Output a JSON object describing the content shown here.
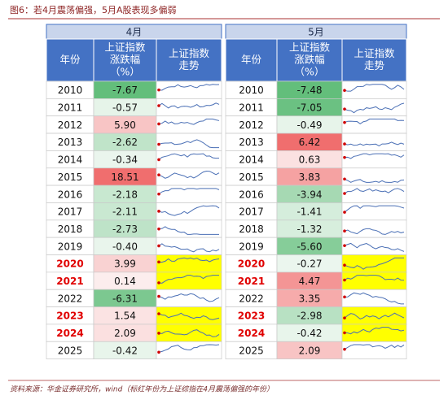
{
  "title": "图6：若4月震荡偏强，5月A股表现多偏弱",
  "source": "资料来源：华金证券研究所，wind（标红年份为上证综指在4月震荡偏强的年份）",
  "tables": [
    {
      "month": "4月",
      "headers": [
        [
          "年份"
        ],
        [
          "上证指数",
          "涨跌幅",
          "（%）"
        ],
        [
          "上证指数",
          "走势"
        ]
      ],
      "rows": [
        {
          "year": "2010",
          "change": "-7.67",
          "highlight": false
        },
        {
          "year": "2011",
          "change": "-0.57",
          "highlight": false
        },
        {
          "year": "2012",
          "change": "5.90",
          "highlight": false
        },
        {
          "year": "2013",
          "change": "-2.62",
          "highlight": false
        },
        {
          "year": "2014",
          "change": "-0.34",
          "highlight": false
        },
        {
          "year": "2015",
          "change": "18.51",
          "highlight": false
        },
        {
          "year": "2016",
          "change": "-2.18",
          "highlight": false
        },
        {
          "year": "2017",
          "change": "-2.11",
          "highlight": false
        },
        {
          "year": "2018",
          "change": "-2.73",
          "highlight": false
        },
        {
          "year": "2019",
          "change": "-0.40",
          "highlight": false
        },
        {
          "year": "2020",
          "change": "3.99",
          "highlight": true
        },
        {
          "year": "2021",
          "change": "0.14",
          "highlight": true
        },
        {
          "year": "2022",
          "change": "-6.31",
          "highlight": false
        },
        {
          "year": "2023",
          "change": "1.54",
          "highlight": true
        },
        {
          "year": "2024",
          "change": "2.09",
          "highlight": true
        },
        {
          "year": "2025",
          "change": "-0.42",
          "highlight": false
        }
      ]
    },
    {
      "month": "5月",
      "headers": [
        [
          "年份"
        ],
        [
          "上证指数",
          "涨跌幅",
          "（%）"
        ],
        [
          "上证指数",
          "走势"
        ]
      ],
      "rows": [
        {
          "year": "2010",
          "change": "-7.48",
          "highlight": false
        },
        {
          "year": "2011",
          "change": "-7.05",
          "highlight": false
        },
        {
          "year": "2012",
          "change": "-0.49",
          "highlight": false
        },
        {
          "year": "2013",
          "change": "6.42",
          "highlight": false
        },
        {
          "year": "2014",
          "change": "0.63",
          "highlight": false
        },
        {
          "year": "2015",
          "change": "3.83",
          "highlight": false
        },
        {
          "year": "2016",
          "change": "-3.94",
          "highlight": false
        },
        {
          "year": "2017",
          "change": "-1.41",
          "highlight": false
        },
        {
          "year": "2018",
          "change": "-1.32",
          "highlight": false
        },
        {
          "year": "2019",
          "change": "-5.60",
          "highlight": false
        },
        {
          "year": "2020",
          "change": "-0.27",
          "highlight": true
        },
        {
          "year": "2021",
          "change": "4.47",
          "highlight": true
        },
        {
          "year": "2022",
          "change": "3.35",
          "highlight": false
        },
        {
          "year": "2023",
          "change": "-2.98",
          "highlight": true
        },
        {
          "year": "2024",
          "change": "-0.42",
          "highlight": true
        },
        {
          "year": "2025",
          "change": "2.09",
          "highlight": false
        }
      ]
    }
  ]
}
